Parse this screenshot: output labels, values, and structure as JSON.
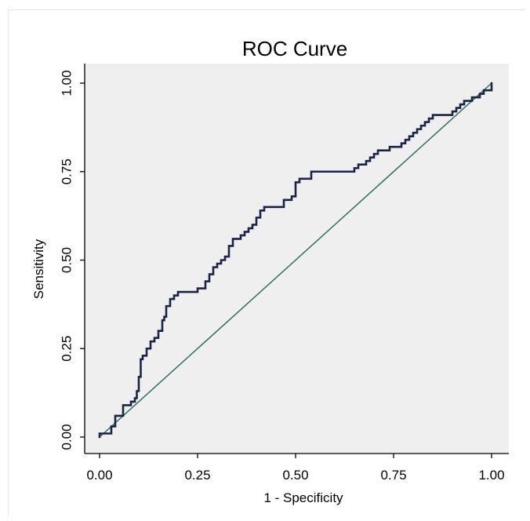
{
  "chart_data": {
    "type": "line",
    "title": "ROC Curve",
    "xlabel": "1 - Specificity",
    "ylabel": "Sensitivity",
    "xlim": [
      0,
      1
    ],
    "ylim": [
      0,
      1
    ],
    "x_ticks": [
      "0.00",
      "0.25",
      "0.50",
      "0.75",
      "1.00"
    ],
    "y_ticks": [
      "0.00",
      "0.25",
      "0.50",
      "0.75",
      "1.00"
    ],
    "grid": false,
    "legend": "none",
    "colors": {
      "plot_background": "#efefef",
      "roc_curve": "#1a2444",
      "reference_line": "#2f6f67"
    },
    "series": [
      {
        "style": "step",
        "x": [
          0.0,
          0.0,
          0.0,
          0.01,
          0.03,
          0.03,
          0.04,
          0.04,
          0.06,
          0.06,
          0.08,
          0.08,
          0.09,
          0.09,
          0.095,
          0.095,
          0.1,
          0.1,
          0.105,
          0.105,
          0.11,
          0.11,
          0.12,
          0.12,
          0.13,
          0.13,
          0.14,
          0.14,
          0.15,
          0.15,
          0.16,
          0.16,
          0.165,
          0.165,
          0.17,
          0.17,
          0.18,
          0.18,
          0.19,
          0.19,
          0.2,
          0.2,
          0.21,
          0.21,
          0.25,
          0.25,
          0.27,
          0.27,
          0.28,
          0.28,
          0.29,
          0.29,
          0.3,
          0.3,
          0.31,
          0.31,
          0.32,
          0.32,
          0.33,
          0.33,
          0.34,
          0.34,
          0.36,
          0.36,
          0.37,
          0.37,
          0.38,
          0.38,
          0.39,
          0.39,
          0.4,
          0.4,
          0.41,
          0.41,
          0.42,
          0.42,
          0.43,
          0.43,
          0.47,
          0.47,
          0.49,
          0.49,
          0.5,
          0.5,
          0.51,
          0.51,
          0.54,
          0.54,
          0.65,
          0.65,
          0.66,
          0.66,
          0.68,
          0.68,
          0.69,
          0.69,
          0.7,
          0.7,
          0.71,
          0.71,
          0.72,
          0.72,
          0.73,
          0.73,
          0.74,
          0.74,
          0.77,
          0.77,
          0.78,
          0.78,
          0.79,
          0.79,
          0.8,
          0.8,
          0.81,
          0.81,
          0.82,
          0.82,
          0.83,
          0.83,
          0.84,
          0.84,
          0.85,
          0.85,
          0.87,
          0.87,
          0.9,
          0.9,
          0.91,
          0.91,
          0.92,
          0.92,
          0.93,
          0.93,
          0.95,
          0.95,
          0.97,
          0.97,
          0.98,
          0.98,
          1.0,
          1.0
        ],
        "y": [
          0.0,
          0.01,
          0.01,
          0.01,
          0.01,
          0.03,
          0.03,
          0.06,
          0.06,
          0.09,
          0.09,
          0.1,
          0.1,
          0.11,
          0.11,
          0.13,
          0.13,
          0.17,
          0.17,
          0.22,
          0.22,
          0.23,
          0.23,
          0.25,
          0.25,
          0.27,
          0.27,
          0.28,
          0.28,
          0.3,
          0.3,
          0.33,
          0.33,
          0.34,
          0.34,
          0.37,
          0.37,
          0.39,
          0.39,
          0.4,
          0.4,
          0.41,
          0.41,
          0.41,
          0.41,
          0.42,
          0.42,
          0.44,
          0.44,
          0.46,
          0.46,
          0.48,
          0.48,
          0.49,
          0.49,
          0.5,
          0.5,
          0.51,
          0.51,
          0.54,
          0.54,
          0.56,
          0.56,
          0.57,
          0.57,
          0.58,
          0.58,
          0.59,
          0.59,
          0.6,
          0.6,
          0.62,
          0.62,
          0.64,
          0.64,
          0.65,
          0.65,
          0.65,
          0.65,
          0.67,
          0.67,
          0.68,
          0.68,
          0.72,
          0.72,
          0.73,
          0.73,
          0.75,
          0.75,
          0.76,
          0.76,
          0.77,
          0.77,
          0.78,
          0.78,
          0.79,
          0.79,
          0.8,
          0.8,
          0.81,
          0.81,
          0.81,
          0.81,
          0.81,
          0.81,
          0.82,
          0.82,
          0.83,
          0.83,
          0.84,
          0.84,
          0.85,
          0.85,
          0.86,
          0.86,
          0.87,
          0.87,
          0.88,
          0.88,
          0.89,
          0.89,
          0.9,
          0.9,
          0.91,
          0.91,
          0.91,
          0.91,
          0.92,
          0.92,
          0.93,
          0.93,
          0.94,
          0.94,
          0.95,
          0.95,
          0.96,
          0.96,
          0.97,
          0.97,
          0.98,
          0.98,
          1.0
        ]
      },
      {
        "style": "reference",
        "x": [
          0,
          1
        ],
        "y": [
          0,
          1
        ]
      }
    ]
  }
}
